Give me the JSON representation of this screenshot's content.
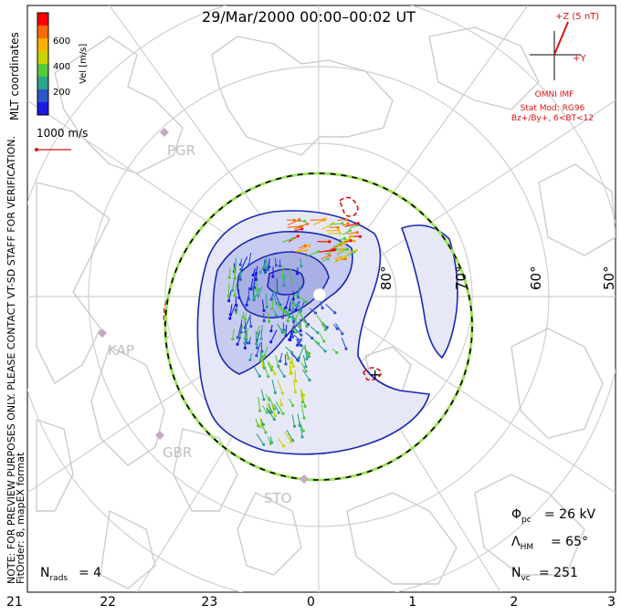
{
  "title": "29/Mar/2000 00:00–00:02 UT",
  "color_scale": {
    "label": "Vel [m/s]",
    "ticks": [
      "600",
      "400",
      "200"
    ],
    "colors": [
      "#ff0000",
      "#ff6a00",
      "#ffb000",
      "#c9d400",
      "#55c83c",
      "#2ca58a",
      "#2f56c8",
      "#1a1ae6"
    ]
  },
  "coord_label": "MLT coordinates",
  "velocity_ref": "1000 m/s",
  "imf": {
    "bz_label": "+Z (5 nT)",
    "by_label": "+Y",
    "model_lines": [
      "OMNI IMF",
      "Stat Mod: RG96",
      "Bz+/By+, 6<BT<12"
    ]
  },
  "notice_line1": "NOTE: FOR PREVIEW PURPOSES ONLY. PLEASE CONTACT VT-SD STAFF FOR VERIFICATION.",
  "notice_line2": "FitOrder: 8, mapEX format",
  "stations": [
    "PGR",
    "KAP",
    "GBR",
    "STO"
  ],
  "lat_labels": [
    "80°",
    "70°",
    "60°",
    "50°"
  ],
  "mlt_ticks": [
    "21",
    "22",
    "23",
    "0",
    "1",
    "2",
    "3"
  ],
  "stats": {
    "phi_pc": "= 26 kV",
    "lambda_hm": "= 65°",
    "n_vc": "= 251",
    "n_rads": "= 4"
  },
  "colors": {
    "convection": "#1a28b4",
    "fill_light": "#e6e8f8",
    "fill_mid": "#c8ccf0",
    "fill_dark": "#a8b0e6",
    "boundary_green": "#9ee35a",
    "coast": "#cfcfcf",
    "red": "#dd1111"
  }
}
